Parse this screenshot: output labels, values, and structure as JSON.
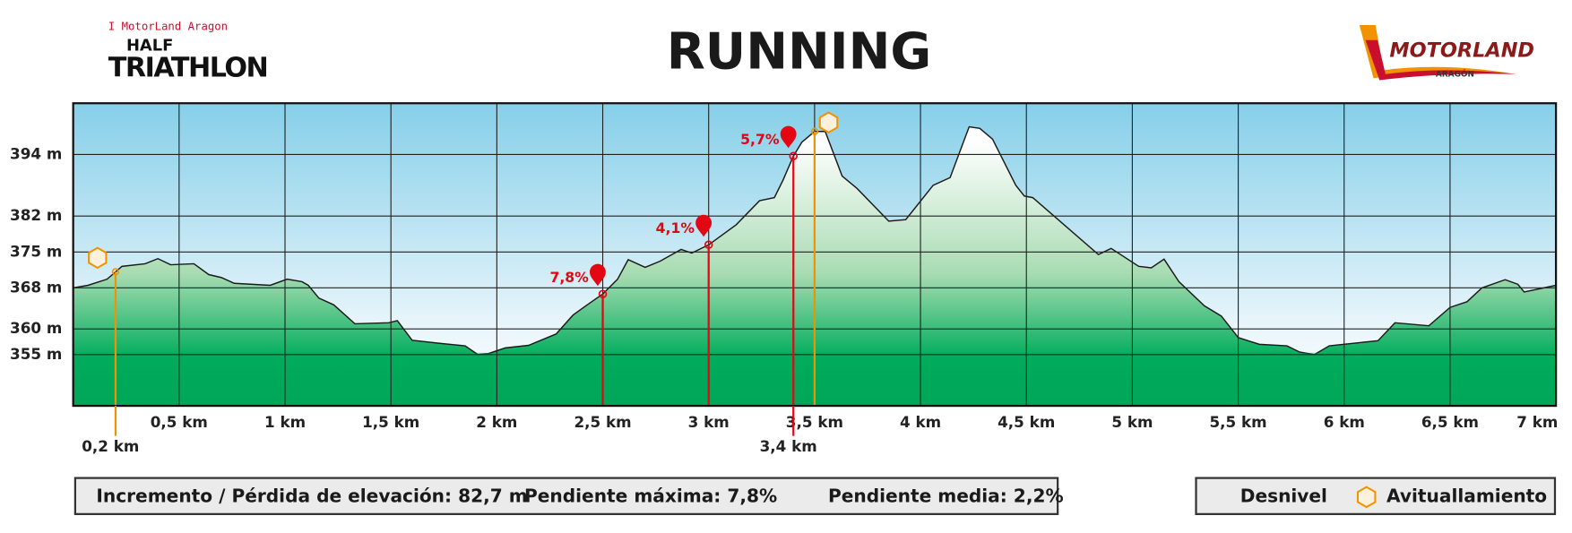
{
  "header": {
    "event_top": "I MotorLand Aragon",
    "event_half": "HALF",
    "event_name": "TRIATHLON",
    "brand": "MOTORLAND",
    "brand_sub": "ARAGÓN"
  },
  "chart_data": {
    "type": "area",
    "title": "RUNNING",
    "x": [
      0,
      0.07,
      0.16,
      0.23,
      0.34,
      0.4,
      0.46,
      0.57,
      0.64,
      0.7,
      0.76,
      0.93,
      1.01,
      1.08,
      1.11,
      1.16,
      1.23,
      1.33,
      1.49,
      1.53,
      1.6,
      1.73,
      1.85,
      1.91,
      1.96,
      2.04,
      2.15,
      2.28,
      2.36,
      2.42,
      2.5,
      2.57,
      2.62,
      2.7,
      2.77,
      2.87,
      2.92,
      3,
      3.13,
      3.24,
      3.31,
      3.35,
      3.4,
      3.44,
      3.5,
      3.55,
      3.63,
      3.7,
      3.85,
      3.93,
      4.06,
      4.14,
      4.23,
      4.28,
      4.34,
      4.45,
      4.49,
      4.53,
      4.84,
      4.9,
      5.03,
      5.09,
      5.15,
      5.22,
      5.34,
      5.42,
      5.5,
      5.6,
      5.73,
      5.79,
      5.86,
      5.93,
      6.16,
      6.24,
      6.4,
      6.5,
      6.58,
      6.65,
      6.76,
      6.82,
      6.85,
      7
    ],
    "values": [
      368,
      368.5,
      369.7,
      372.2,
      372.7,
      373.7,
      372.5,
      372.7,
      370.6,
      370,
      368.9,
      368.5,
      369.7,
      369.2,
      368.5,
      366,
      364.7,
      361,
      361.2,
      361.6,
      357.8,
      357.2,
      356.7,
      355,
      355.2,
      356.3,
      356.8,
      359,
      362.7,
      364.5,
      366.8,
      369.7,
      373.5,
      372,
      373.2,
      375.5,
      374.8,
      376.4,
      380.3,
      385,
      385.6,
      388.9,
      393.7,
      396.4,
      398.5,
      398.5,
      389.8,
      387.4,
      381,
      381.3,
      388,
      389.5,
      399.4,
      399.1,
      397,
      388,
      385.9,
      385.6,
      374.5,
      375.7,
      372.2,
      371.9,
      373.6,
      369.2,
      364.5,
      362.5,
      358.3,
      357,
      356.7,
      355.5,
      355,
      356.7,
      357.7,
      361.2,
      360.6,
      364.2,
      365.3,
      368,
      369.6,
      368.7,
      367.2,
      368.5
    ],
    "color": "#00a859",
    "line_color": "#1a1a1a",
    "xlim": [
      0,
      7
    ],
    "ylim": [
      345,
      404
    ],
    "xticks": [
      {
        "value": 0.5,
        "label": "0,5 km"
      },
      {
        "value": 1,
        "label": "1 km"
      },
      {
        "value": 1.5,
        "label": "1,5 km"
      },
      {
        "value": 2,
        "label": "2 km"
      },
      {
        "value": 2.5,
        "label": "2,5 km"
      },
      {
        "value": 3,
        "label": "3 km"
      },
      {
        "value": 3.5,
        "label": "3,5 km"
      },
      {
        "value": 4,
        "label": "4 km"
      },
      {
        "value": 4.5,
        "label": "4,5 km"
      },
      {
        "value": 5,
        "label": "5 km"
      },
      {
        "value": 5.5,
        "label": "5,5 km"
      },
      {
        "value": 6,
        "label": "6 km"
      },
      {
        "value": 6.5,
        "label": "6,5 km"
      },
      {
        "value": 7,
        "label": "7 km"
      }
    ],
    "yticks": [
      {
        "value": 394,
        "label": "394 m"
      },
      {
        "value": 382,
        "label": "382 m"
      },
      {
        "value": 375,
        "label": "375 m"
      },
      {
        "value": 368,
        "label": "368 m"
      },
      {
        "value": 360,
        "label": "360 m"
      },
      {
        "value": 355,
        "label": "355 m"
      }
    ],
    "grid": true,
    "slope_color": "#e30613",
    "aid_color": "#f39200",
    "slope_markers": [
      {
        "x": 2.5,
        "label": "7,8%"
      },
      {
        "x": 3,
        "label": "4,1%"
      },
      {
        "x": 3.4,
        "label": "5,7%"
      }
    ],
    "aid_stations": [
      0.2,
      3.5
    ],
    "extra_xticks": [
      {
        "value": 0.2,
        "label": "0,2 km"
      },
      {
        "value": 3.4,
        "label": "3,4 km"
      }
    ],
    "legend": [
      "Desnivel",
      "Avituallamiento"
    ]
  },
  "stats": [
    "Incremento / Pérdida de elevación: 82,7 m",
    "Pendiente máxima: 7,8%",
    "Pendiente media: 2,2%"
  ]
}
